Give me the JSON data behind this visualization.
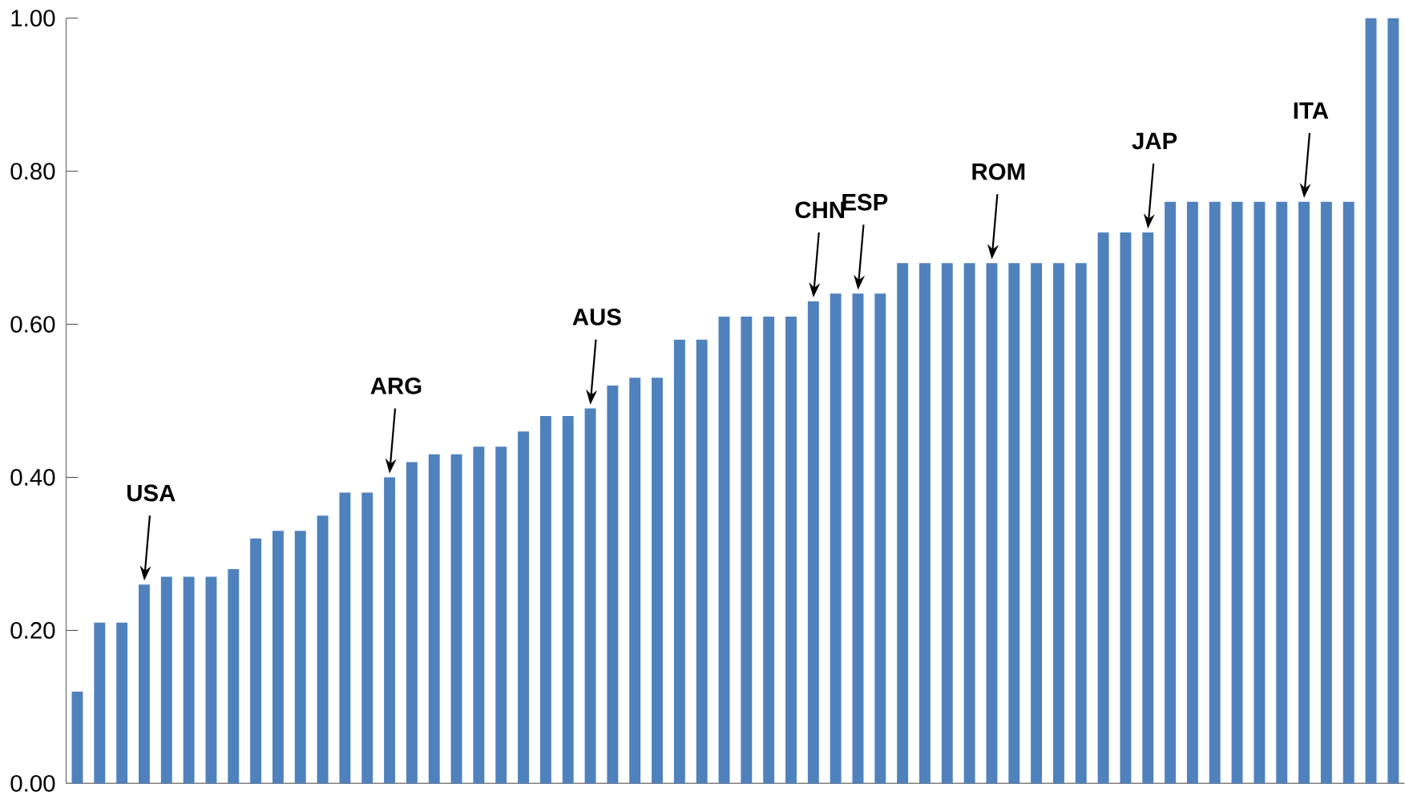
{
  "chart_data": {
    "type": "bar",
    "color": "#4f81bd",
    "categories": [
      null,
      null,
      null,
      null,
      null,
      null,
      null,
      null,
      null,
      null,
      null,
      null,
      null,
      null,
      null,
      null,
      null,
      null,
      null,
      null,
      null,
      null,
      null,
      null,
      null,
      null,
      null,
      null,
      null,
      null,
      null,
      null,
      null,
      null,
      null,
      null,
      null,
      null,
      null,
      null,
      null,
      null,
      null,
      null,
      null,
      null,
      null,
      null,
      null,
      null,
      null,
      null,
      null,
      null,
      null,
      null,
      null,
      null,
      null,
      null
    ],
    "values": [
      0.12,
      0.21,
      0.21,
      0.26,
      0.27,
      0.27,
      0.27,
      0.28,
      0.32,
      0.33,
      0.33,
      0.35,
      0.38,
      0.38,
      0.4,
      0.42,
      0.43,
      0.43,
      0.44,
      0.44,
      0.46,
      0.48,
      0.48,
      0.49,
      0.52,
      0.53,
      0.53,
      0.58,
      0.58,
      0.61,
      0.61,
      0.61,
      0.61,
      0.63,
      0.64,
      0.64,
      0.64,
      0.68,
      0.68,
      0.68,
      0.68,
      0.68,
      0.68,
      0.68,
      0.68,
      0.68,
      0.72,
      0.72,
      0.72,
      0.76,
      0.76,
      0.76,
      0.76,
      0.76,
      0.76,
      0.76,
      0.76,
      0.76,
      1.0,
      1.0
    ],
    "ylim": [
      0,
      1
    ],
    "yticks": [
      {
        "value": 0,
        "label": "0.00"
      },
      {
        "value": 0.2,
        "label": "0.20"
      },
      {
        "value": 0.4,
        "label": "0.40"
      },
      {
        "value": 0.6,
        "label": "0.60"
      },
      {
        "value": 0.8,
        "label": "0.80"
      },
      {
        "value": 1,
        "label": "1.00"
      }
    ],
    "tick_labels": "y",
    "grid": false,
    "annotations": [
      "USA",
      "ARG",
      "AUS",
      "CHN",
      "ESP",
      "ROM",
      "JAP",
      "ITA"
    ]
  }
}
